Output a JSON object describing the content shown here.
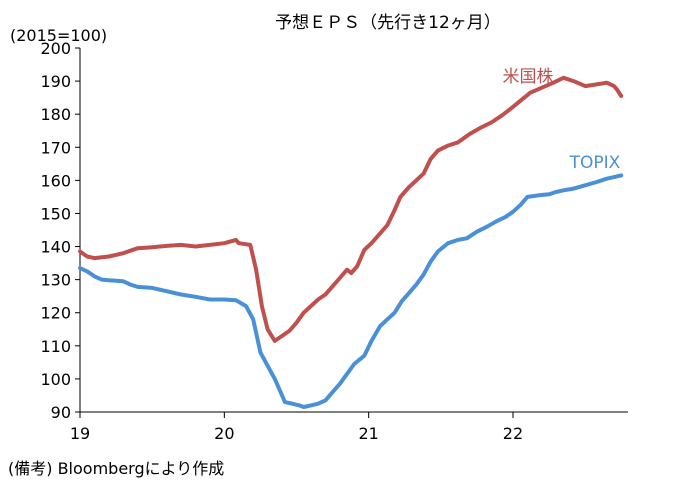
{
  "chart_data": {
    "type": "line",
    "title": "予想ＥＰＳ（先行き12ヶ月）",
    "unit_label": "(2015=100)",
    "source_note": "(備考) Bloombergにより作成",
    "x_ticks": [
      {
        "value": 2019,
        "label": "19"
      },
      {
        "value": 2020,
        "label": "20"
      },
      {
        "value": 2021,
        "label": "21"
      },
      {
        "value": 2022,
        "label": "22"
      }
    ],
    "xlim": [
      2019.0,
      2022.8
    ],
    "ylim": [
      90,
      200
    ],
    "y_ticks": [
      90,
      100,
      110,
      120,
      130,
      140,
      150,
      160,
      170,
      180,
      190,
      200
    ],
    "grid": false,
    "series": [
      {
        "name": "米国株",
        "color": "#c0504d",
        "points": [
          [
            2019.0,
            138.5
          ],
          [
            2019.05,
            137.0
          ],
          [
            2019.1,
            136.5
          ],
          [
            2019.2,
            137.0
          ],
          [
            2019.3,
            138.0
          ],
          [
            2019.4,
            139.5
          ],
          [
            2019.5,
            139.8
          ],
          [
            2019.6,
            140.2
          ],
          [
            2019.7,
            140.5
          ],
          [
            2019.8,
            140.0
          ],
          [
            2019.9,
            140.5
          ],
          [
            2020.0,
            141.0
          ],
          [
            2020.08,
            142.0
          ],
          [
            2020.1,
            141.0
          ],
          [
            2020.18,
            140.5
          ],
          [
            2020.22,
            133.0
          ],
          [
            2020.26,
            122.0
          ],
          [
            2020.3,
            115.0
          ],
          [
            2020.35,
            111.5
          ],
          [
            2020.4,
            113.0
          ],
          [
            2020.45,
            114.5
          ],
          [
            2020.5,
            117.0
          ],
          [
            2020.55,
            120.0
          ],
          [
            2020.6,
            122.0
          ],
          [
            2020.65,
            124.0
          ],
          [
            2020.7,
            125.5
          ],
          [
            2020.75,
            128.0
          ],
          [
            2020.8,
            130.5
          ],
          [
            2020.85,
            133.0
          ],
          [
            2020.88,
            132.0
          ],
          [
            2020.92,
            134.0
          ],
          [
            2020.97,
            139.0
          ],
          [
            2021.02,
            141.0
          ],
          [
            2021.08,
            144.0
          ],
          [
            2021.13,
            146.5
          ],
          [
            2021.18,
            151.0
          ],
          [
            2021.22,
            155.0
          ],
          [
            2021.28,
            158.0
          ],
          [
            2021.33,
            160.0
          ],
          [
            2021.38,
            162.0
          ],
          [
            2021.43,
            166.5
          ],
          [
            2021.48,
            169.0
          ],
          [
            2021.55,
            170.5
          ],
          [
            2021.62,
            171.5
          ],
          [
            2021.7,
            174.0
          ],
          [
            2021.78,
            176.0
          ],
          [
            2021.85,
            177.5
          ],
          [
            2021.92,
            179.5
          ],
          [
            2021.98,
            181.5
          ],
          [
            2022.05,
            184.0
          ],
          [
            2022.12,
            186.5
          ],
          [
            2022.2,
            188.0
          ],
          [
            2022.28,
            189.5
          ],
          [
            2022.35,
            191.0
          ],
          [
            2022.42,
            190.0
          ],
          [
            2022.5,
            188.5
          ],
          [
            2022.58,
            189.0
          ],
          [
            2022.65,
            189.5
          ],
          [
            2022.7,
            188.5
          ],
          [
            2022.72,
            187.5
          ],
          [
            2022.75,
            185.5
          ]
        ]
      },
      {
        "name": "TOPIX",
        "color": "#4a90d9",
        "points": [
          [
            2019.0,
            133.5
          ],
          [
            2019.05,
            132.5
          ],
          [
            2019.1,
            131.0
          ],
          [
            2019.15,
            130.0
          ],
          [
            2019.2,
            129.8
          ],
          [
            2019.3,
            129.5
          ],
          [
            2019.35,
            128.5
          ],
          [
            2019.4,
            127.8
          ],
          [
            2019.5,
            127.5
          ],
          [
            2019.6,
            126.5
          ],
          [
            2019.7,
            125.5
          ],
          [
            2019.8,
            124.8
          ],
          [
            2019.9,
            124.0
          ],
          [
            2020.0,
            124.0
          ],
          [
            2020.08,
            123.8
          ],
          [
            2020.15,
            122.0
          ],
          [
            2020.2,
            118.0
          ],
          [
            2020.25,
            108.0
          ],
          [
            2020.3,
            104.0
          ],
          [
            2020.35,
            100.0
          ],
          [
            2020.4,
            95.0
          ],
          [
            2020.42,
            93.0
          ],
          [
            2020.47,
            92.5
          ],
          [
            2020.52,
            92.0
          ],
          [
            2020.55,
            91.5
          ],
          [
            2020.6,
            92.0
          ],
          [
            2020.65,
            92.5
          ],
          [
            2020.7,
            93.5
          ],
          [
            2020.75,
            96.0
          ],
          [
            2020.8,
            98.5
          ],
          [
            2020.85,
            101.5
          ],
          [
            2020.9,
            104.5
          ],
          [
            2020.97,
            107.0
          ],
          [
            2021.02,
            111.5
          ],
          [
            2021.08,
            116.0
          ],
          [
            2021.13,
            118.0
          ],
          [
            2021.18,
            120.0
          ],
          [
            2021.23,
            123.5
          ],
          [
            2021.28,
            126.0
          ],
          [
            2021.33,
            128.5
          ],
          [
            2021.38,
            131.5
          ],
          [
            2021.43,
            135.5
          ],
          [
            2021.48,
            138.5
          ],
          [
            2021.55,
            141.0
          ],
          [
            2021.62,
            142.0
          ],
          [
            2021.68,
            142.5
          ],
          [
            2021.75,
            144.5
          ],
          [
            2021.82,
            146.0
          ],
          [
            2021.88,
            147.5
          ],
          [
            2021.95,
            149.0
          ],
          [
            2022.0,
            150.5
          ],
          [
            2022.05,
            152.5
          ],
          [
            2022.1,
            155.0
          ],
          [
            2022.18,
            155.5
          ],
          [
            2022.25,
            155.8
          ],
          [
            2022.3,
            156.5
          ],
          [
            2022.35,
            157.0
          ],
          [
            2022.42,
            157.5
          ],
          [
            2022.5,
            158.5
          ],
          [
            2022.58,
            159.5
          ],
          [
            2022.65,
            160.5
          ],
          [
            2022.7,
            161.0
          ],
          [
            2022.75,
            161.5
          ]
        ]
      }
    ]
  }
}
